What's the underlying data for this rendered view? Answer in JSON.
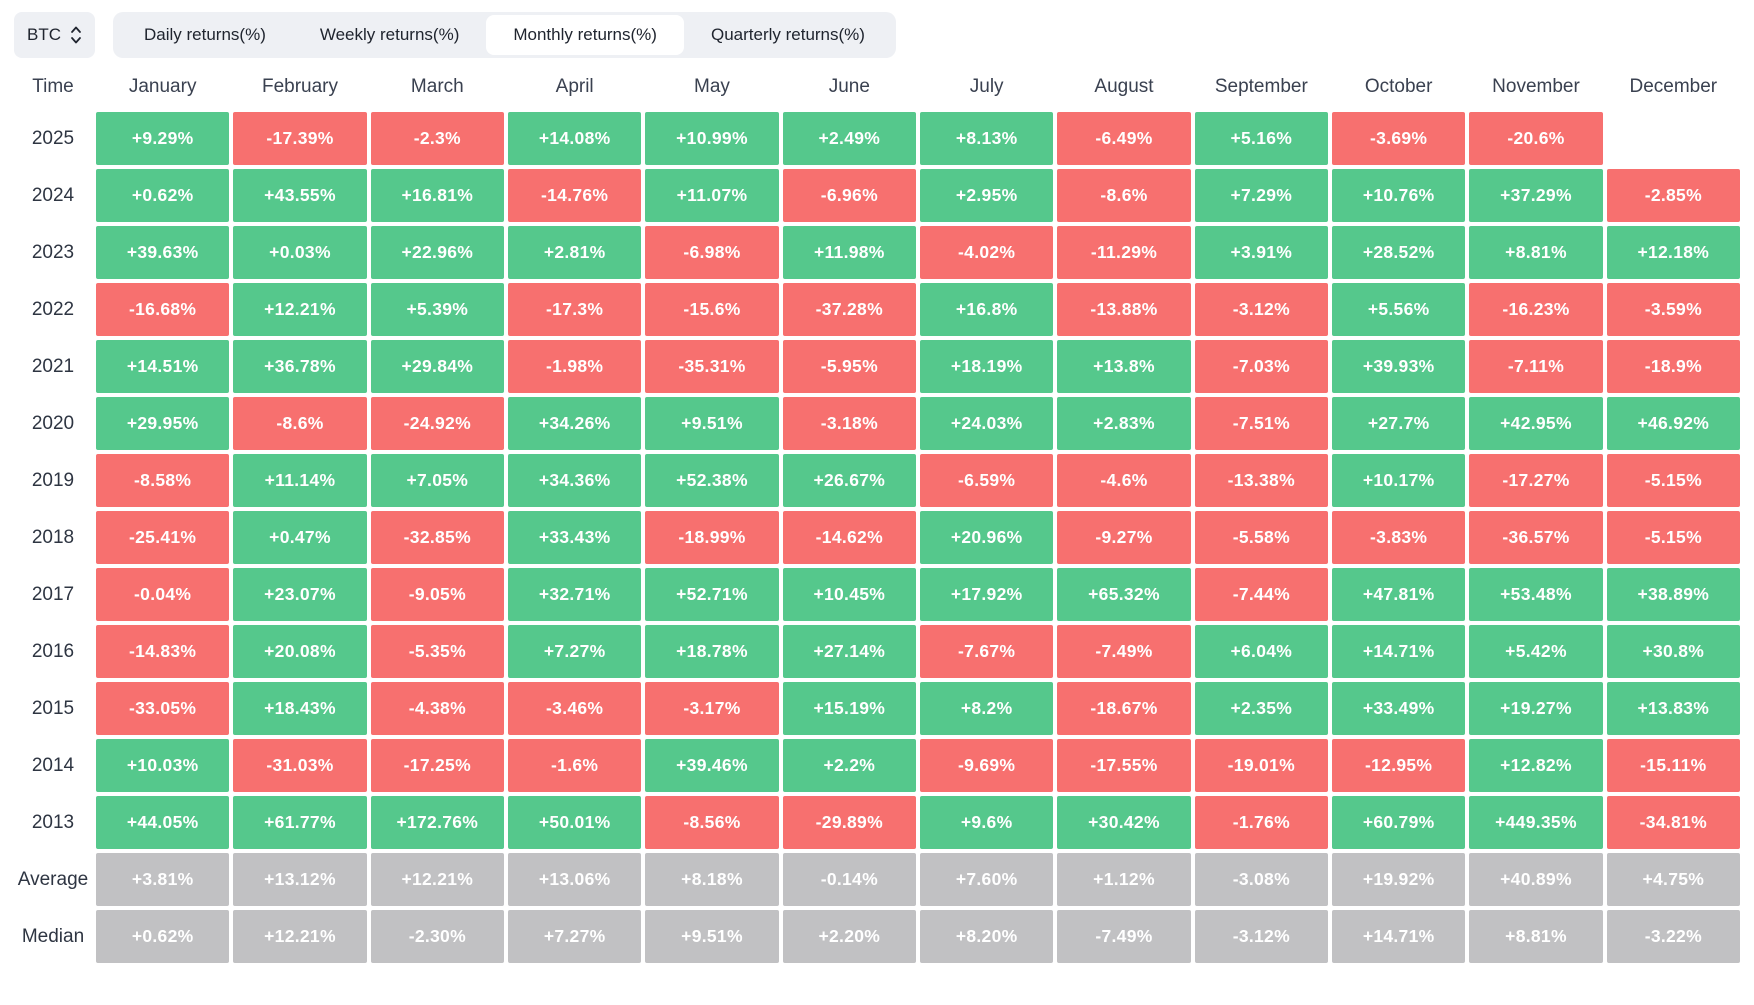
{
  "toolbar": {
    "asset": {
      "label": "BTC"
    },
    "tabs": [
      {
        "label": "Daily returns(%)",
        "active": false
      },
      {
        "label": "Weekly returns(%)",
        "active": false
      },
      {
        "label": "Monthly returns(%)",
        "active": true
      },
      {
        "label": "Quarterly returns(%)",
        "active": false
      }
    ]
  },
  "table": {
    "time_header": "Time",
    "months": [
      "January",
      "February",
      "March",
      "April",
      "May",
      "June",
      "July",
      "August",
      "September",
      "October",
      "November",
      "December"
    ],
    "rows": [
      {
        "label": "2025",
        "type": "year",
        "cells": [
          "+9.29%",
          "-17.39%",
          "-2.3%",
          "+14.08%",
          "+10.99%",
          "+2.49%",
          "+8.13%",
          "-6.49%",
          "+5.16%",
          "-3.69%",
          "-20.6%",
          null
        ]
      },
      {
        "label": "2024",
        "type": "year",
        "cells": [
          "+0.62%",
          "+43.55%",
          "+16.81%",
          "-14.76%",
          "+11.07%",
          "-6.96%",
          "+2.95%",
          "-8.6%",
          "+7.29%",
          "+10.76%",
          "+37.29%",
          "-2.85%"
        ]
      },
      {
        "label": "2023",
        "type": "year",
        "cells": [
          "+39.63%",
          "+0.03%",
          "+22.96%",
          "+2.81%",
          "-6.98%",
          "+11.98%",
          "-4.02%",
          "-11.29%",
          "+3.91%",
          "+28.52%",
          "+8.81%",
          "+12.18%"
        ]
      },
      {
        "label": "2022",
        "type": "year",
        "cells": [
          "-16.68%",
          "+12.21%",
          "+5.39%",
          "-17.3%",
          "-15.6%",
          "-37.28%",
          "+16.8%",
          "-13.88%",
          "-3.12%",
          "+5.56%",
          "-16.23%",
          "-3.59%"
        ]
      },
      {
        "label": "2021",
        "type": "year",
        "cells": [
          "+14.51%",
          "+36.78%",
          "+29.84%",
          "-1.98%",
          "-35.31%",
          "-5.95%",
          "+18.19%",
          "+13.8%",
          "-7.03%",
          "+39.93%",
          "-7.11%",
          "-18.9%"
        ]
      },
      {
        "label": "2020",
        "type": "year",
        "cells": [
          "+29.95%",
          "-8.6%",
          "-24.92%",
          "+34.26%",
          "+9.51%",
          "-3.18%",
          "+24.03%",
          "+2.83%",
          "-7.51%",
          "+27.7%",
          "+42.95%",
          "+46.92%"
        ]
      },
      {
        "label": "2019",
        "type": "year",
        "cells": [
          "-8.58%",
          "+11.14%",
          "+7.05%",
          "+34.36%",
          "+52.38%",
          "+26.67%",
          "-6.59%",
          "-4.6%",
          "-13.38%",
          "+10.17%",
          "-17.27%",
          "-5.15%"
        ]
      },
      {
        "label": "2018",
        "type": "year",
        "cells": [
          "-25.41%",
          "+0.47%",
          "-32.85%",
          "+33.43%",
          "-18.99%",
          "-14.62%",
          "+20.96%",
          "-9.27%",
          "-5.58%",
          "-3.83%",
          "-36.57%",
          "-5.15%"
        ]
      },
      {
        "label": "2017",
        "type": "year",
        "cells": [
          "-0.04%",
          "+23.07%",
          "-9.05%",
          "+32.71%",
          "+52.71%",
          "+10.45%",
          "+17.92%",
          "+65.32%",
          "-7.44%",
          "+47.81%",
          "+53.48%",
          "+38.89%"
        ]
      },
      {
        "label": "2016",
        "type": "year",
        "cells": [
          "-14.83%",
          "+20.08%",
          "-5.35%",
          "+7.27%",
          "+18.78%",
          "+27.14%",
          "-7.67%",
          "-7.49%",
          "+6.04%",
          "+14.71%",
          "+5.42%",
          "+30.8%"
        ]
      },
      {
        "label": "2015",
        "type": "year",
        "cells": [
          "-33.05%",
          "+18.43%",
          "-4.38%",
          "-3.46%",
          "-3.17%",
          "+15.19%",
          "+8.2%",
          "-18.67%",
          "+2.35%",
          "+33.49%",
          "+19.27%",
          "+13.83%"
        ]
      },
      {
        "label": "2014",
        "type": "year",
        "cells": [
          "+10.03%",
          "-31.03%",
          "-17.25%",
          "-1.6%",
          "+39.46%",
          "+2.2%",
          "-9.69%",
          "-17.55%",
          "-19.01%",
          "-12.95%",
          "+12.82%",
          "-15.11%"
        ]
      },
      {
        "label": "2013",
        "type": "year",
        "cells": [
          "+44.05%",
          "+61.77%",
          "+172.76%",
          "+50.01%",
          "-8.56%",
          "-29.89%",
          "+9.6%",
          "+30.42%",
          "-1.76%",
          "+60.79%",
          "+449.35%",
          "-34.81%"
        ]
      },
      {
        "label": "Average",
        "type": "summary",
        "cells": [
          "+3.81%",
          "+13.12%",
          "+12.21%",
          "+13.06%",
          "+8.18%",
          "-0.14%",
          "+7.60%",
          "+1.12%",
          "-3.08%",
          "+19.92%",
          "+40.89%",
          "+4.75%"
        ]
      },
      {
        "label": "Median",
        "type": "summary",
        "cells": [
          "+0.62%",
          "+12.21%",
          "-2.30%",
          "+7.27%",
          "+9.51%",
          "+2.20%",
          "+8.20%",
          "-7.49%",
          "-3.12%",
          "+14.71%",
          "+8.81%",
          "-3.22%"
        ]
      }
    ]
  },
  "colors": {
    "positive": "#55C88C",
    "negative": "#F7706F",
    "summary": "#C1C1C3",
    "toolbar_bg": "#EEF0F4"
  }
}
